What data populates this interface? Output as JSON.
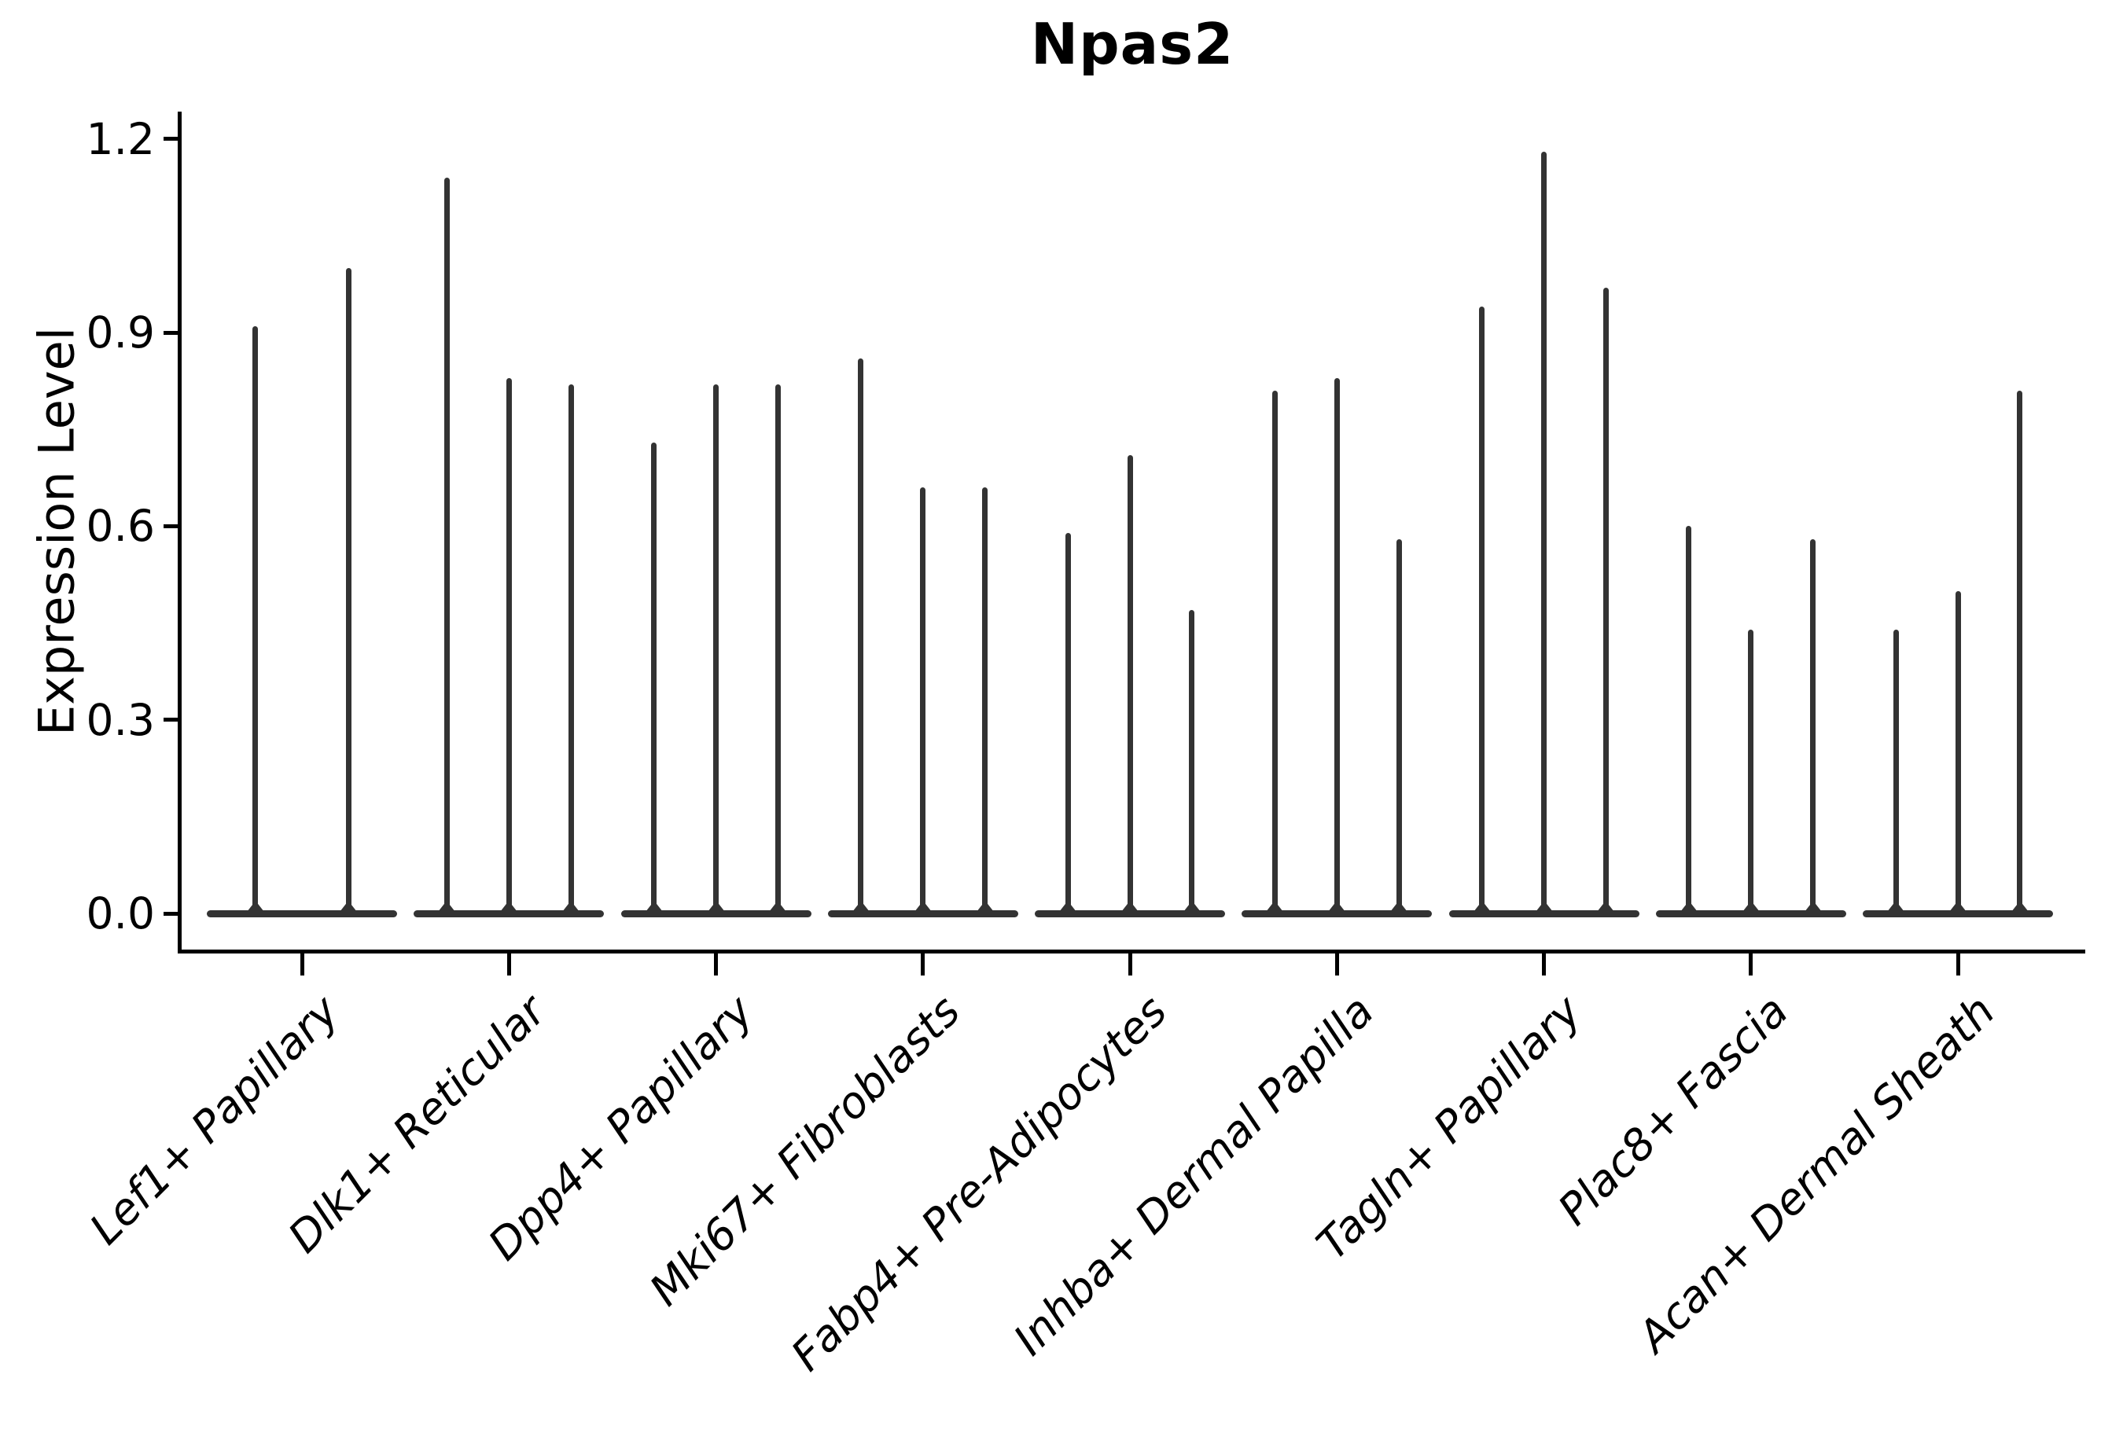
{
  "title": "Npas2",
  "y_axis": {
    "label": "Expression Level",
    "tick_labels": [
      "0.0",
      "0.3",
      "0.6",
      "0.9",
      "1.2"
    ],
    "tick_values": [
      0.0,
      0.3,
      0.6,
      0.9,
      1.2
    ]
  },
  "style": {
    "violin_color": "#333333",
    "axis_color": "#000000",
    "background_color": "#ffffff"
  },
  "chart_data": {
    "type": "violin",
    "title": "Npas2",
    "xlabel": "",
    "ylabel": "Expression Level",
    "ylim": [
      0,
      1.2
    ],
    "yticks": [
      0.0,
      0.3,
      0.6,
      0.9,
      1.2
    ],
    "grid": false,
    "legend": false,
    "description": "Single-cell expression violin plot; each category shows narrow spike-shaped violins (max expression peaks) with a wide flat base at 0.",
    "categories": [
      "Lef1+ Papillary",
      "Dlk1+ Reticular",
      "Dpp4+ Papillary",
      "Mki67+ Fibroblasts",
      "Fabp4+ Pre-Adipocytes",
      "Inhba+ Dermal Papilla",
      "Tagln+ Papillary",
      "Plac8+ Fascia",
      "Acan+ Dermal Sheath"
    ],
    "series": [
      {
        "category": "Lef1+ Papillary",
        "violin_peaks": [
          0.91,
          1.0
        ]
      },
      {
        "category": "Dlk1+ Reticular",
        "violin_peaks": [
          1.14,
          0.83,
          0.82
        ]
      },
      {
        "category": "Dpp4+ Papillary",
        "violin_peaks": [
          0.73,
          0.82,
          0.82
        ]
      },
      {
        "category": "Mki67+ Fibroblasts",
        "violin_peaks": [
          0.86,
          0.66,
          0.66
        ]
      },
      {
        "category": "Fabp4+ Pre-Adipocytes",
        "violin_peaks": [
          0.59,
          0.71,
          0.47
        ]
      },
      {
        "category": "Inhba+ Dermal Papilla",
        "violin_peaks": [
          0.81,
          0.83,
          0.58
        ]
      },
      {
        "category": "Tagln+ Papillary",
        "violin_peaks": [
          0.94,
          1.18,
          0.97
        ]
      },
      {
        "category": "Plac8+ Fascia",
        "violin_peaks": [
          0.6,
          0.44,
          0.58
        ]
      },
      {
        "category": "Acan+ Dermal Sheath",
        "violin_peaks": [
          0.44,
          0.5,
          0.81
        ]
      }
    ]
  }
}
